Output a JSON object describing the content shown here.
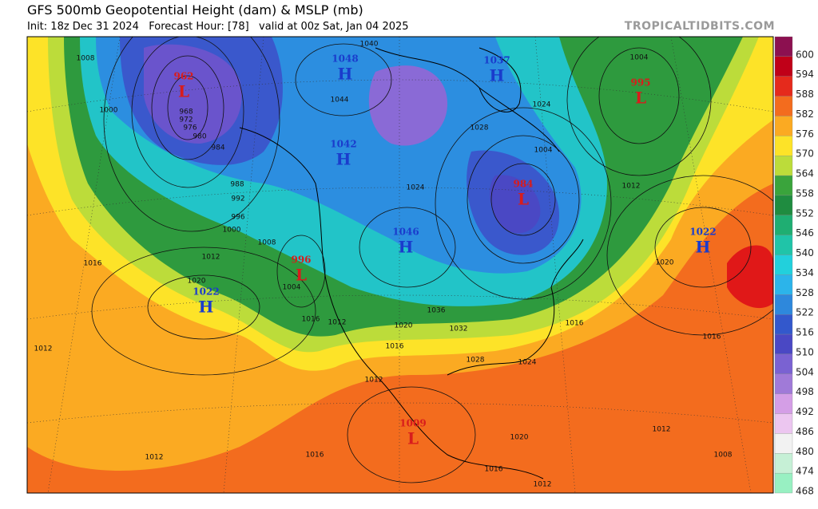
{
  "header": {
    "title": "GFS 500mb Geopotential Height (dam) & MSLP (mb)",
    "subtitle": "Init: 18z Dec 31 2024   Forecast Hour: [78]   valid at 00z Sat, Jan 04 2025",
    "watermark": "TROPICALTIDBITS.COM"
  },
  "colorbar": {
    "levels": [
      {
        "label": "600",
        "color": "#8c1050"
      },
      {
        "label": "594",
        "color": "#c00018"
      },
      {
        "label": "588",
        "color": "#e52a1c"
      },
      {
        "label": "582",
        "color": "#f36c1e"
      },
      {
        "label": "576",
        "color": "#fbaa22"
      },
      {
        "label": "570",
        "color": "#fde328"
      },
      {
        "label": "564",
        "color": "#bcdc3a"
      },
      {
        "label": "558",
        "color": "#3aa43c"
      },
      {
        "label": "552",
        "color": "#1f8c40"
      },
      {
        "label": "546",
        "color": "#1fae72"
      },
      {
        "label": "540",
        "color": "#20c4a8"
      },
      {
        "label": "534",
        "color": "#22d0dc"
      },
      {
        "label": "528",
        "color": "#2cb4ea"
      },
      {
        "label": "522",
        "color": "#2e88dc"
      },
      {
        "label": "516",
        "color": "#3358cc"
      },
      {
        "label": "510",
        "color": "#4a48c4"
      },
      {
        "label": "504",
        "color": "#7a62d2"
      },
      {
        "label": "498",
        "color": "#a07ad8"
      },
      {
        "label": "492",
        "color": "#d49ee6"
      },
      {
        "label": "486",
        "color": "#ecc6f0"
      },
      {
        "label": "480",
        "color": "#f2f2f2"
      },
      {
        "label": "474",
        "color": "#c6f0d6"
      },
      {
        "label": "468",
        "color": "#98f0c2"
      }
    ]
  },
  "centers": [
    {
      "letter": "L",
      "value": "962"
    },
    {
      "letter": "H",
      "value": "1048"
    },
    {
      "letter": "H",
      "value": "1037"
    },
    {
      "letter": "L",
      "value": "995"
    },
    {
      "letter": "H",
      "value": "1042"
    },
    {
      "letter": "L",
      "value": "984"
    },
    {
      "letter": "H",
      "value": "1046"
    },
    {
      "letter": "L",
      "value": "996"
    },
    {
      "letter": "H",
      "value": "1022"
    },
    {
      "letter": "H",
      "value": "1022"
    },
    {
      "letter": "L",
      "value": "1009"
    }
  ],
  "isobar_labels": [
    "1008",
    "1000",
    "968",
    "972",
    "976",
    "980",
    "984",
    "988",
    "992",
    "996",
    "1000",
    "1008",
    "1012",
    "1016",
    "1020",
    "1012",
    "1012",
    "1016",
    "1016",
    "1012",
    "1020",
    "1016",
    "1012",
    "1036",
    "1032",
    "1028",
    "1024",
    "1016",
    "1020",
    "1016",
    "1012",
    "1008",
    "1020",
    "1016",
    "1012",
    "1004",
    "1024",
    "1004",
    "1012",
    "1044",
    "1040",
    "1004",
    "1028",
    "1024"
  ]
}
